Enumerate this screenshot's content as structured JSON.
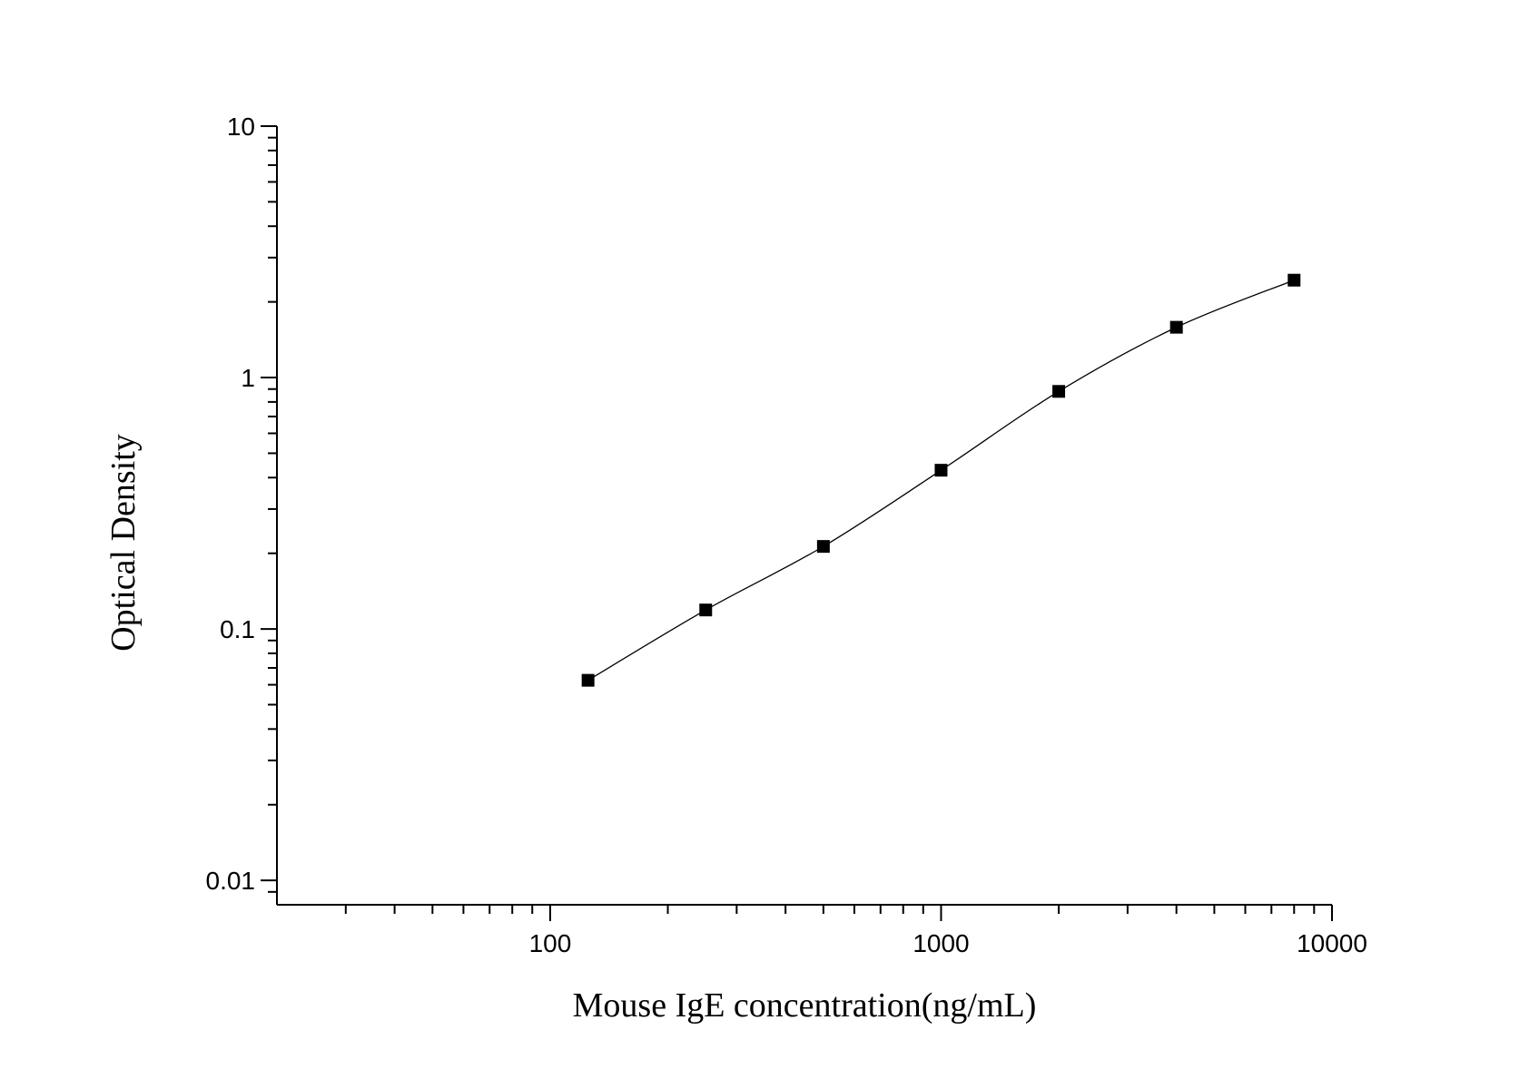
{
  "chart_data": {
    "type": "scatter",
    "x_label": "Mouse IgE concentration(ng/mL)",
    "y_label": "Optical Density",
    "xscale": "log",
    "yscale": "log",
    "xlim": [
      20,
      10000
    ],
    "ylim": [
      0.008,
      10
    ],
    "xticks": [
      100,
      1000,
      10000
    ],
    "yticks": [
      0.01,
      0.1,
      1,
      10
    ],
    "xminorticks": [
      30,
      40,
      50,
      60,
      70,
      80,
      90,
      200,
      300,
      400,
      500,
      600,
      700,
      800,
      900,
      2000,
      3000,
      4000,
      5000,
      6000,
      7000,
      8000,
      9000
    ],
    "yminorticks": [
      0.009,
      0.02,
      0.03,
      0.04,
      0.05,
      0.06,
      0.07,
      0.08,
      0.09,
      0.2,
      0.3,
      0.4,
      0.5,
      0.6,
      0.7,
      0.8,
      0.9,
      2,
      3,
      4,
      5,
      6,
      7,
      8,
      9
    ],
    "fit_line": true,
    "series": [
      {
        "color": "#000000",
        "x": [
          125,
          250,
          500,
          1000,
          2000,
          4000,
          8000
        ],
        "values": [
          0.0625,
          0.119,
          0.213,
          0.428,
          0.881,
          1.585,
          2.44
        ]
      }
    ]
  }
}
